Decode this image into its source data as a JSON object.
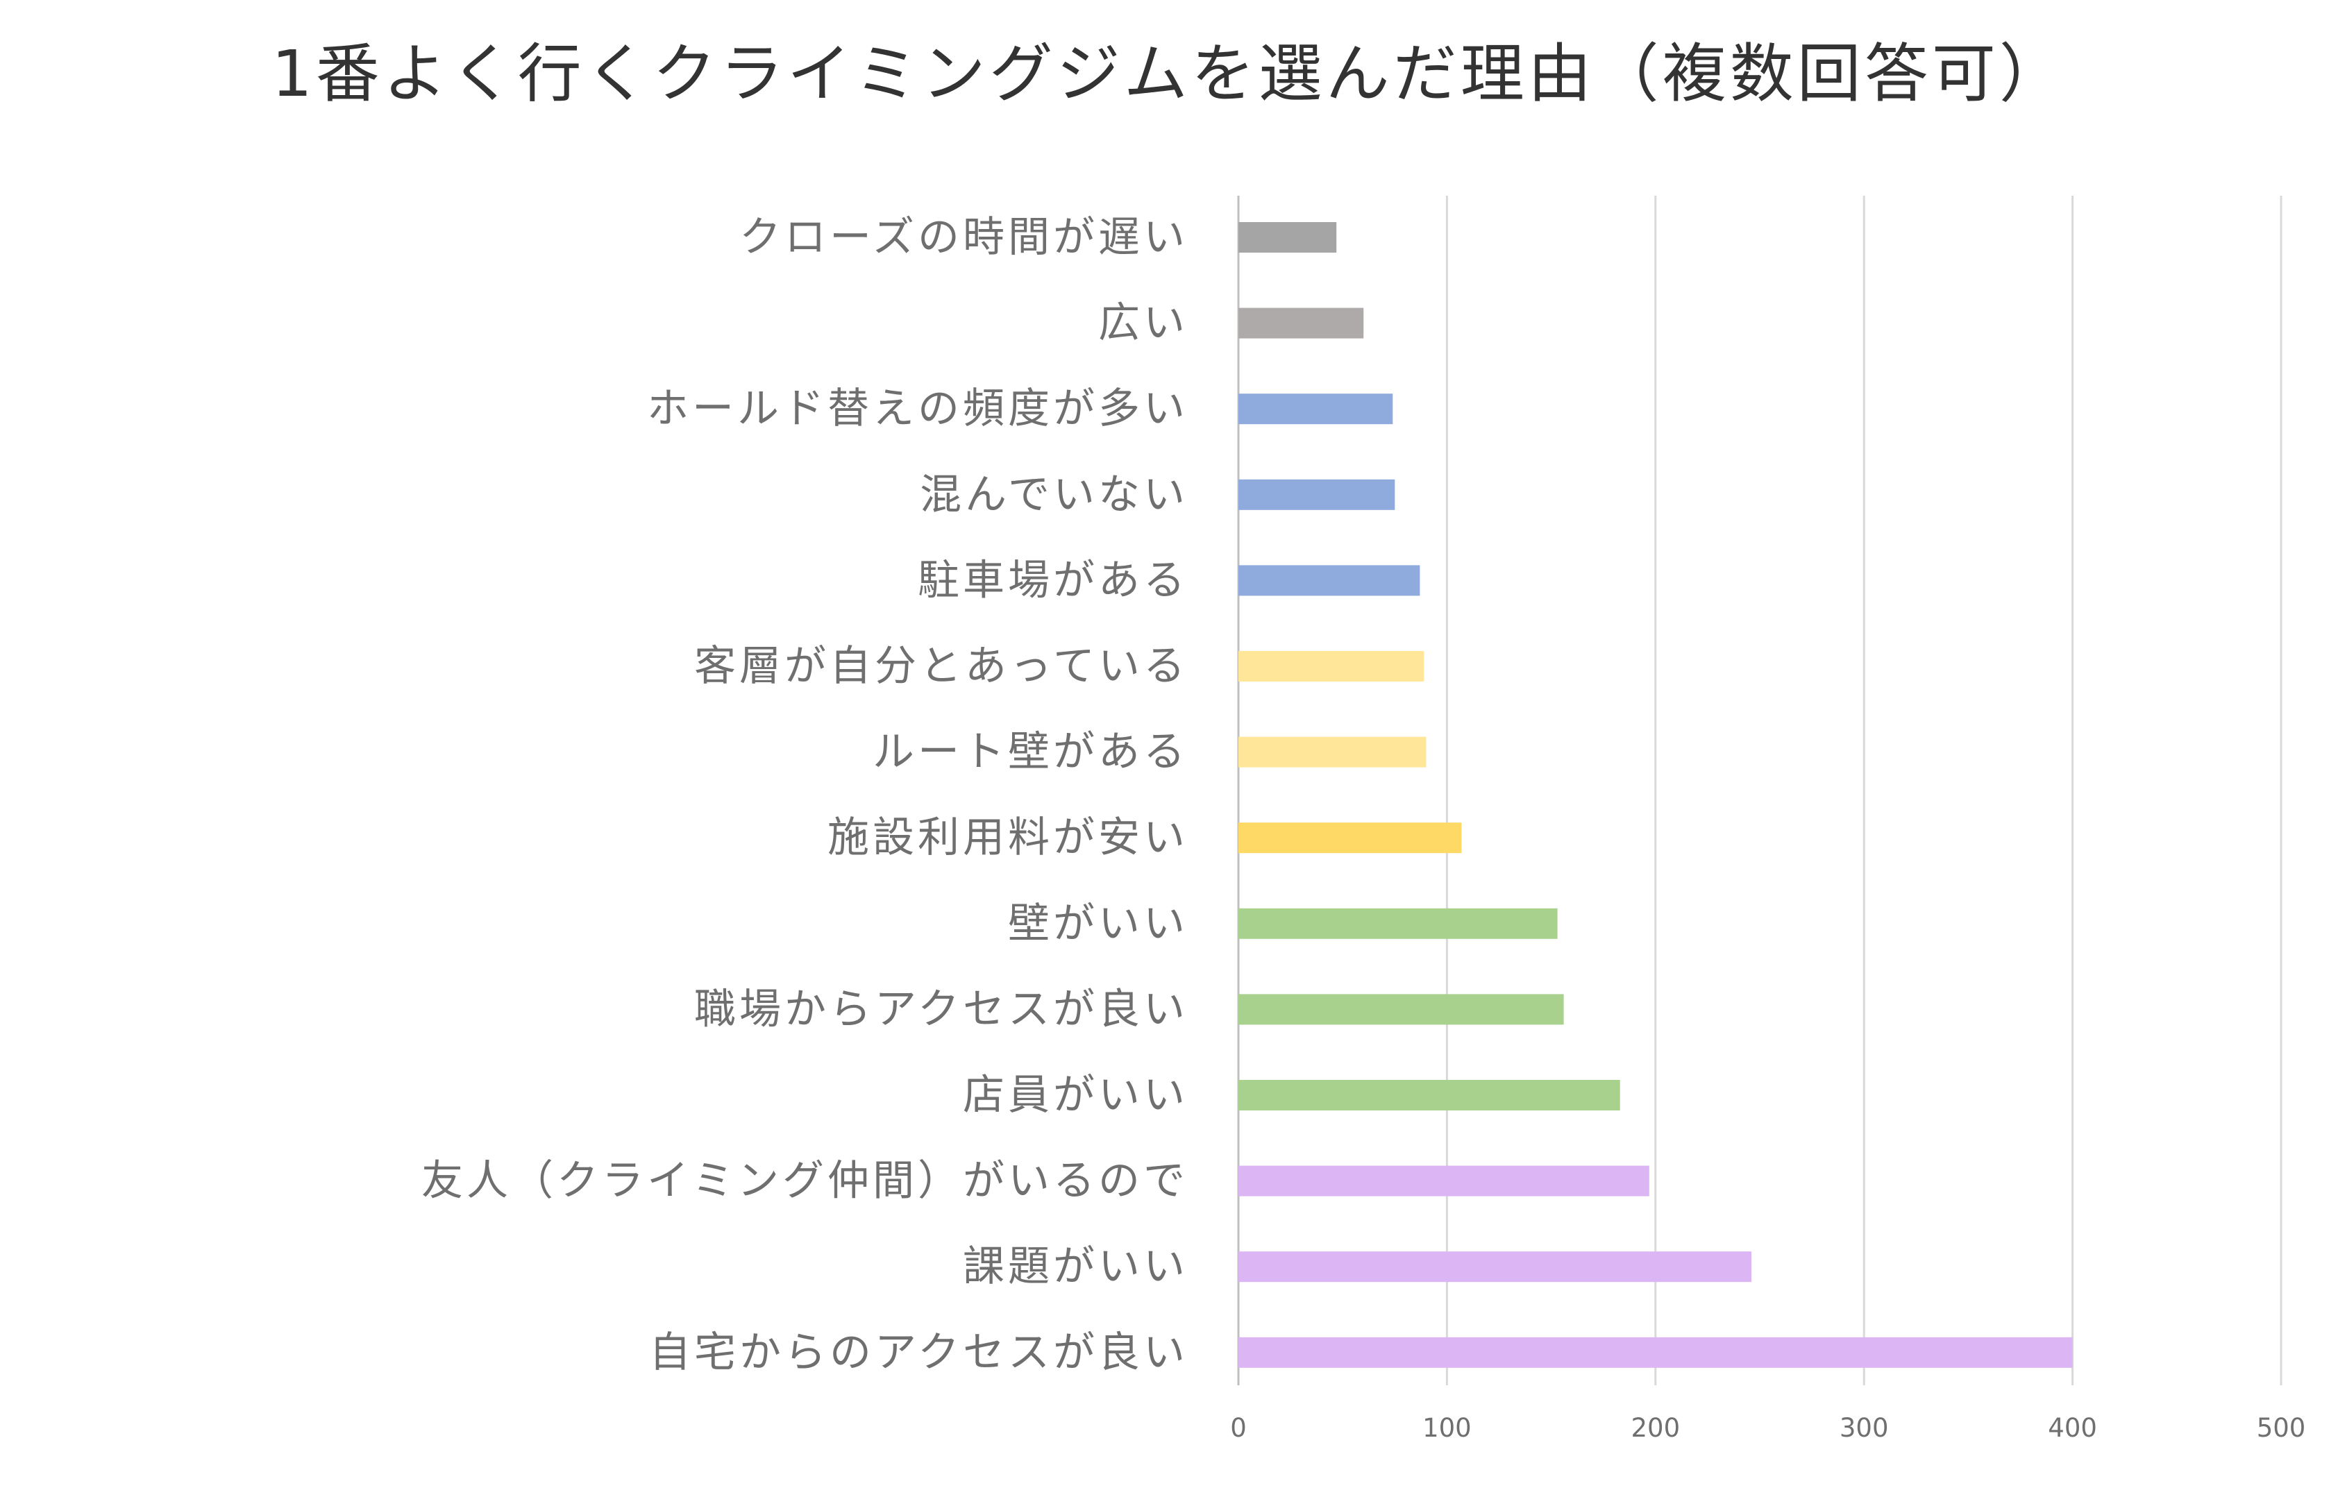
{
  "chart_data": {
    "type": "bar",
    "orientation": "horizontal",
    "title": "1番よく行くクライミングジムを選んだ理由（複数回答可）",
    "xlabel": "",
    "ylabel": "",
    "xlim": [
      0,
      500
    ],
    "x_ticks": [
      0,
      100,
      200,
      300,
      400,
      500
    ],
    "grid": true,
    "legend": "none",
    "categories": [
      "クローズの時間が遅い",
      "広い",
      "ホールド替えの頻度が多い",
      "混んでいない",
      "駐車場がある",
      "客層が自分とあっている",
      "ルート壁がある",
      "施設利用料が安い",
      "壁がいい",
      "職場からアクセスが良い",
      "店員がいい",
      "友人（クライミング仲間）がいるので",
      "課題がいい",
      "自宅からのアクセスが良い"
    ],
    "values": [
      47,
      60,
      74,
      75,
      87,
      89,
      90,
      107,
      153,
      156,
      183,
      197,
      246,
      400
    ],
    "bar_colors": [
      "#a5a5a5",
      "#aeaaaa",
      "#8faadc",
      "#8faadc",
      "#8faadc",
      "#ffe699",
      "#ffe699",
      "#ffd966",
      "#a9d18e",
      "#a9d18e",
      "#a9d18e",
      "#dcb6f4",
      "#dcb6f4",
      "#dcb6f4"
    ]
  }
}
